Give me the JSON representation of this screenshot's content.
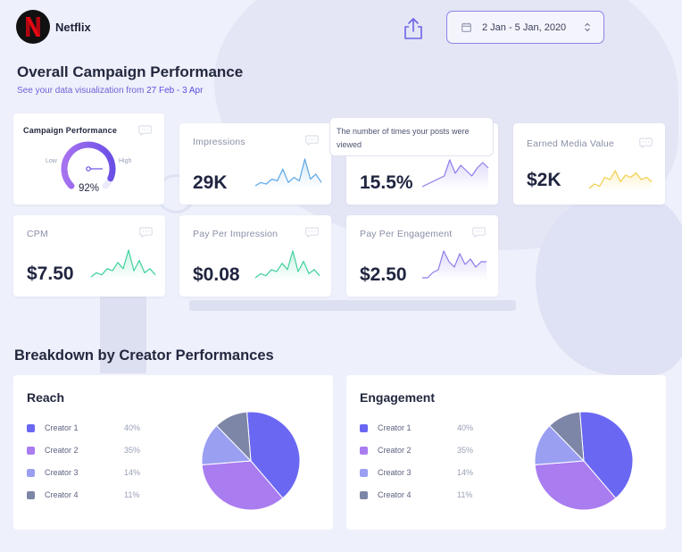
{
  "brand": {
    "name": "Netflix"
  },
  "header": {
    "date_range": "2 Jan - 5 Jan, 2020"
  },
  "overview": {
    "title": "Overall Campaign Performance",
    "subtitle_prefix": "See your data visualization from ",
    "subtitle_range": "27 Feb - 3 Apr"
  },
  "colors": {
    "accent": "#6c63e8",
    "blue_line": "#5aa7e6",
    "purple_line": "#8e7bea",
    "yellow_line": "#f1cf4a",
    "green_line": "#3fd19a",
    "creator1": "#6a67f3",
    "creator2": "#a97cf0",
    "creator3": "#9b9ff2",
    "creator4": "#7e86a7"
  },
  "gauge": {
    "label": "Campaign Performance",
    "low": "Low",
    "high": "High",
    "value_text": "92%",
    "value": 0.92
  },
  "metrics": [
    {
      "label": "Impressions",
      "value": "29K",
      "series": [
        2,
        4,
        3,
        6,
        5,
        12,
        4,
        7,
        5,
        18,
        6,
        9,
        4
      ],
      "color": "#5aa7e6"
    },
    {
      "label": "",
      "value": "15.5%",
      "series": [
        3,
        4,
        5,
        6,
        7,
        13,
        8,
        11,
        9,
        7,
        10,
        12,
        10
      ],
      "color": "#8e7bea"
    },
    {
      "label": "Earned Media Value",
      "value": "$2K",
      "series": [
        3,
        5,
        4,
        8,
        7,
        11,
        6,
        9,
        8,
        10,
        7,
        8,
        6
      ],
      "color": "#f1cf4a"
    },
    {
      "label": "CPM",
      "value": "$7.50",
      "series": [
        2,
        4,
        3,
        6,
        5,
        9,
        6,
        15,
        5,
        10,
        4,
        6,
        3
      ],
      "color": "#3fd19a"
    },
    {
      "label": "Pay Per Impression",
      "value": "$0.08",
      "series": [
        2,
        4,
        3,
        6,
        5,
        9,
        6,
        15,
        5,
        10,
        4,
        6,
        3
      ],
      "color": "#3fd19a"
    },
    {
      "label": "Pay Per Engagement",
      "value": "$2.50",
      "series": [
        3,
        3,
        5,
        6,
        13,
        9,
        7,
        12,
        8,
        10,
        7,
        9,
        9
      ],
      "color": "#8e7bea"
    }
  ],
  "tooltip": {
    "text": "The number of times your posts were viewed"
  },
  "breakdown": {
    "title": "Breakdown by Creator Performances",
    "panels": [
      {
        "title": "Reach",
        "items": [
          {
            "name": "Creator 1",
            "pct": "40%",
            "value": 40
          },
          {
            "name": "Creator 2",
            "pct": "35%",
            "value": 35
          },
          {
            "name": "Creator 3",
            "pct": "14%",
            "value": 14
          },
          {
            "name": "Creator 4",
            "pct": "11%",
            "value": 11
          }
        ]
      },
      {
        "title": "Engagement",
        "items": [
          {
            "name": "Creator 1",
            "pct": "40%",
            "value": 40
          },
          {
            "name": "Creator 2",
            "pct": "35%",
            "value": 35
          },
          {
            "name": "Creator 3",
            "pct": "14%",
            "value": 14
          },
          {
            "name": "Creator 4",
            "pct": "11%",
            "value": 11
          }
        ]
      }
    ]
  }
}
